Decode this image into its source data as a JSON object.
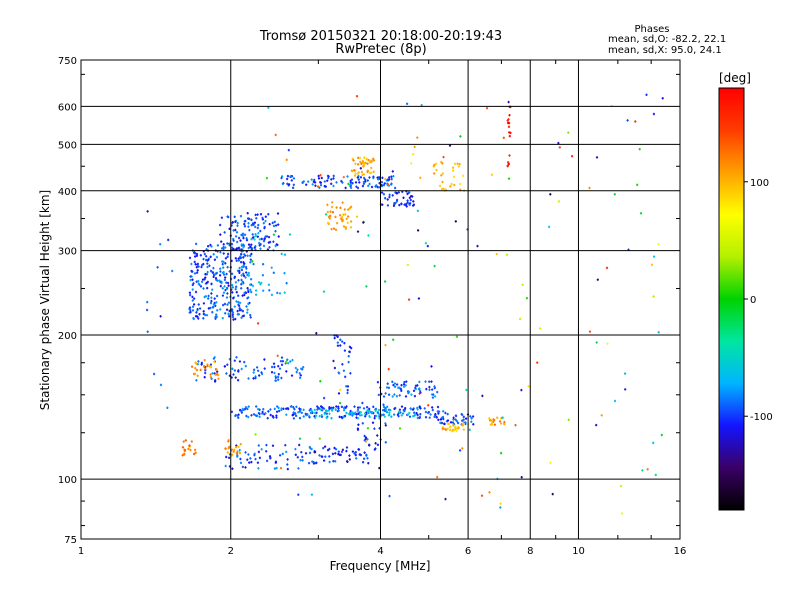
{
  "chart_data": {
    "type": "scatter",
    "title": "Tromsø 20150321 20:18:00-20:19:43",
    "subtitle": "RwPretec (8p)",
    "xlabel": "Frequency [MHz]",
    "ylabel": "Stationary phase Virtual Height [km]",
    "x_scale": "log",
    "y_scale": "log",
    "xlim": [
      1,
      16
    ],
    "ylim": [
      75,
      750
    ],
    "x_ticks": [
      1,
      2,
      4,
      6,
      8,
      10,
      16
    ],
    "x_tick_labels": [
      "1",
      "2",
      "4",
      "6",
      "8",
      "10",
      "16"
    ],
    "y_ticks": [
      75,
      100,
      200,
      300,
      400,
      500,
      600,
      750
    ],
    "y_tick_labels": [
      "75",
      "100",
      "200",
      "300",
      "400",
      "500",
      "600",
      "750"
    ],
    "grid": true,
    "stats": {
      "heading": "Phases",
      "line_o": "mean, sd,O: -82.2, 22.1",
      "line_x": "mean, sd,X:  95.0, 24.1"
    },
    "colorbar": {
      "label": "[deg]",
      "range": [
        -180,
        180
      ],
      "ticks": [
        100,
        0,
        -100
      ],
      "tick_labels": [
        "100",
        "0",
        "-100"
      ],
      "palette": [
        "#000000",
        "#3a0066",
        "#1414ff",
        "#00b4ff",
        "#00e6a0",
        "#00d200",
        "#b4f000",
        "#ffff00",
        "#ffa000",
        "#ff3c00",
        "#ff0000"
      ]
    },
    "clusters": [
      {
        "name": "E trace",
        "x": [
          1.95,
          3.0
        ],
        "y": [
          105,
          118
        ],
        "phase": -95,
        "n": 70
      },
      {
        "name": "E trace blue",
        "x": [
          3.0,
          3.8
        ],
        "y": [
          108,
          117
        ],
        "phase": -105,
        "n": 45
      },
      {
        "name": "E rising",
        "x": [
          3.6,
          4.1
        ],
        "y": [
          115,
          145
        ],
        "phase": -100,
        "n": 30
      },
      {
        "name": "E trace yellow",
        "x": [
          1.95,
          2.1
        ],
        "y": [
          112,
          122
        ],
        "phase": 110,
        "n": 20
      },
      {
        "name": "E trace yellow left",
        "x": [
          1.6,
          1.7
        ],
        "y": [
          112,
          122
        ],
        "phase": 120,
        "n": 18
      },
      {
        "name": "Es main",
        "x": [
          2.0,
          5.4
        ],
        "y": [
          134,
          142
        ],
        "phase": -95,
        "n": 220
      },
      {
        "name": "Es cyan",
        "x": [
          2.9,
          4.8
        ],
        "y": [
          134,
          140
        ],
        "phase": -60,
        "n": 60
      },
      {
        "name": "Es extension",
        "x": [
          5.0,
          6.2
        ],
        "y": [
          130,
          137
        ],
        "phase": -100,
        "n": 40
      },
      {
        "name": "Es yellow patch",
        "x": [
          5.3,
          6.0
        ],
        "y": [
          126,
          131
        ],
        "phase": 100,
        "n": 30
      },
      {
        "name": "Es yellow right",
        "x": [
          6.6,
          7.1
        ],
        "y": [
          130,
          135
        ],
        "phase": 110,
        "n": 18
      },
      {
        "name": "Es2",
        "x": [
          3.9,
          5.2
        ],
        "y": [
          148,
          160
        ],
        "phase": -90,
        "n": 60
      },
      {
        "name": "F1 low",
        "x": [
          1.7,
          2.8
        ],
        "y": [
          160,
          180
        ],
        "phase": -95,
        "n": 90
      },
      {
        "name": "F1 low yellow",
        "x": [
          1.65,
          1.9
        ],
        "y": [
          162,
          178
        ],
        "phase": 110,
        "n": 25
      },
      {
        "name": "F vertical",
        "x": [
          3.2,
          3.5
        ],
        "y": [
          150,
          200
        ],
        "phase": -100,
        "n": 30
      },
      {
        "name": "F main",
        "x": [
          1.65,
          2.2
        ],
        "y": [
          215,
          310
        ],
        "phase": -95,
        "n": 320
      },
      {
        "name": "F main upper",
        "x": [
          1.9,
          2.5
        ],
        "y": [
          300,
          360
        ],
        "phase": -100,
        "n": 120
      },
      {
        "name": "F cyan",
        "x": [
          2.1,
          2.6
        ],
        "y": [
          240,
          330
        ],
        "phase": -70,
        "n": 40
      },
      {
        "name": "F2 upper",
        "x": [
          2.5,
          4.3
        ],
        "y": [
          405,
          430
        ],
        "phase": -95,
        "n": 110
      },
      {
        "name": "F2 upper yellow",
        "x": [
          3.5,
          3.9
        ],
        "y": [
          430,
          470
        ],
        "phase": 105,
        "n": 45
      },
      {
        "name": "F2 mid yellow",
        "x": [
          3.1,
          3.5
        ],
        "y": [
          330,
          380
        ],
        "phase": 110,
        "n": 40
      },
      {
        "name": "F2 blue cluster",
        "x": [
          4.0,
          4.7
        ],
        "y": [
          370,
          400
        ],
        "phase": -105,
        "n": 45
      },
      {
        "name": "F2 yellow right",
        "x": [
          5.1,
          5.9
        ],
        "y": [
          400,
          460
        ],
        "phase": 100,
        "n": 30
      },
      {
        "name": "scatter noise",
        "x": [
          2.2,
          15.0
        ],
        "y": [
          80,
          640
        ],
        "phase": 0,
        "n": 150
      },
      {
        "name": "red column",
        "x": [
          7.2,
          7.3
        ],
        "y": [
          450,
          610
        ],
        "phase": 175,
        "n": 16
      },
      {
        "name": "left isolated",
        "x": [
          1.35,
          1.6
        ],
        "y": [
          125,
          440
        ],
        "phase": -100,
        "n": 12
      }
    ]
  }
}
